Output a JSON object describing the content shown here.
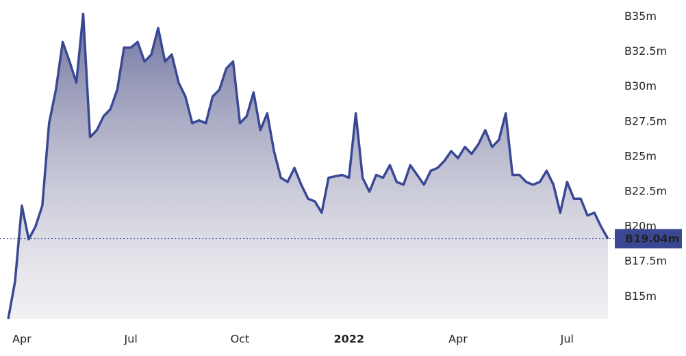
{
  "chart_data": {
    "type": "area",
    "categories": [
      null,
      null,
      "Apr",
      null,
      null,
      null,
      null,
      null,
      null,
      null,
      null,
      null,
      null,
      null,
      null,
      null,
      null,
      null,
      "Jul",
      null,
      null,
      null,
      null,
      null,
      null,
      null,
      null,
      null,
      null,
      null,
      null,
      null,
      null,
      null,
      "Oct",
      null,
      null,
      null,
      null,
      null,
      null,
      null,
      null,
      null,
      null,
      null,
      null,
      null,
      null,
      null,
      "2022",
      null,
      null,
      null,
      null,
      null,
      null,
      null,
      null,
      null,
      null,
      null,
      null,
      null,
      null,
      null,
      "Apr",
      null,
      null,
      null,
      null,
      null,
      null,
      null,
      null,
      null,
      null,
      null,
      null,
      null,
      null,
      null,
      "Jul",
      null,
      null,
      null,
      null,
      null,
      null
    ],
    "series": [
      {
        "color": "#3a4894",
        "values": [
          13.3,
          16.0,
          21.4,
          19.0,
          19.9,
          21.4,
          27.3,
          29.7,
          33.1,
          31.7,
          30.2,
          35.1,
          26.3,
          26.8,
          27.8,
          28.3,
          29.7,
          32.7,
          32.7,
          33.1,
          31.7,
          32.2,
          34.1,
          31.7,
          32.2,
          30.2,
          29.2,
          27.3,
          27.5,
          27.3,
          29.2,
          29.7,
          31.2,
          31.7,
          27.3,
          27.8,
          29.5,
          26.8,
          28.0,
          25.3,
          23.4,
          23.1,
          24.1,
          22.9,
          21.9,
          21.7,
          20.9,
          23.4,
          23.5,
          23.6,
          23.4,
          28.0,
          23.4,
          22.4,
          23.6,
          23.4,
          24.3,
          23.1,
          22.9,
          24.3,
          23.6,
          22.9,
          23.9,
          24.1,
          24.6,
          25.3,
          24.8,
          25.6,
          25.1,
          25.8,
          26.8,
          25.6,
          26.1,
          28.0,
          23.6,
          23.6,
          23.1,
          22.9,
          23.1,
          23.9,
          22.9,
          20.9,
          23.1,
          21.9,
          21.9,
          20.7,
          20.9,
          19.9,
          19.04
        ]
      }
    ],
    "last_value_label": "B19.04m",
    "ylim": [
      13.3,
      36.1
    ],
    "yticks": [
      {
        "value": 15,
        "label": "B15m"
      },
      {
        "value": 17.5,
        "label": "B17.5m"
      },
      {
        "value": 20,
        "label": "B20m"
      },
      {
        "value": 22.5,
        "label": "B22.5m"
      },
      {
        "value": 25,
        "label": "B25m"
      },
      {
        "value": 27.5,
        "label": "B27.5m"
      },
      {
        "value": 30,
        "label": "B30m"
      },
      {
        "value": 32.5,
        "label": "B32.5m"
      },
      {
        "value": 35,
        "label": "B35m"
      }
    ]
  }
}
